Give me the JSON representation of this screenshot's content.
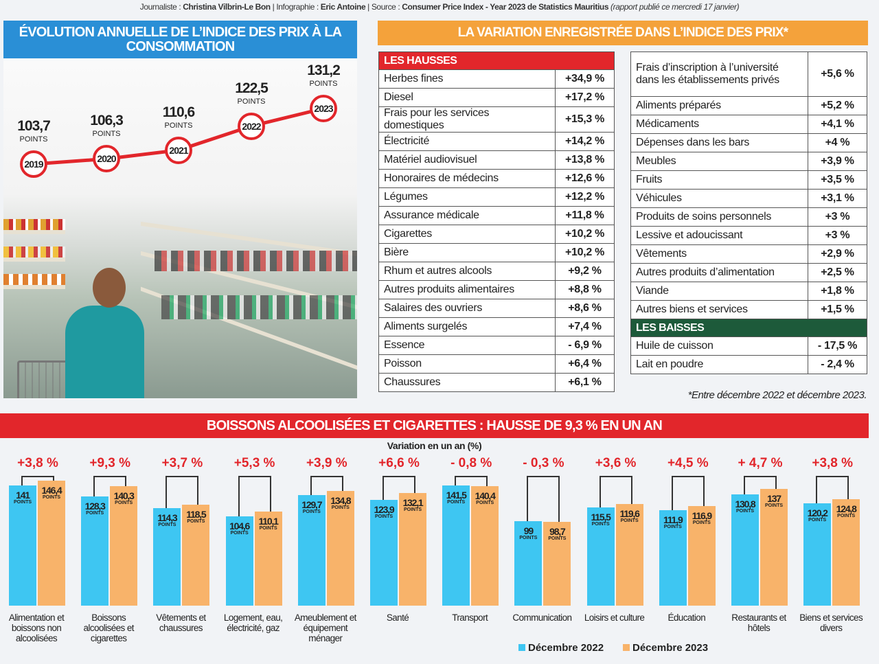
{
  "credits": {
    "l1": "Journaliste : ",
    "journalist": "Christina Vilbrin-Le Bon",
    "l2": " | Infographie : ",
    "designer": "Eric Antoine",
    "l3": " | Source : ",
    "source": "Consumer Price Index - Year 2023 de Statistics Mauritius",
    "note": " (rapport publié ce mercredi 17 janvier)"
  },
  "left_title": "ÉVOLUTION ANNUELLE DE L’INDICE DES PRIX À LA CONSOMMATION",
  "points_label": "POINTS",
  "colors": {
    "red": "#e2262b",
    "blue": "#3ec6f2",
    "orange": "#f8b36a",
    "green": "#1d5a3a",
    "title_blue": "#2a8fd6",
    "title_orange": "#f4a23b"
  },
  "chart_data": [
    {
      "type": "line",
      "title": "ÉVOLUTION ANNUELLE DE L’INDICE DES PRIX À LA CONSOMMATION",
      "x": [
        "2019",
        "2020",
        "2021",
        "2022",
        "2023"
      ],
      "y": [
        103.7,
        106.3,
        110.6,
        122.5,
        131.2
      ],
      "labels": [
        "103,7",
        "106,3",
        "110,6",
        "122,5",
        "131,2"
      ],
      "unit": "POINTS",
      "color": "#e2262b"
    },
    {
      "type": "bar",
      "title": "BOISSONS ALCOOLISÉES ET CIGARETTES : HAUSSE DE 9,3 % EN UN AN",
      "subtitle": "Variation en un an (%)",
      "categories": [
        "Alimentation et boissons non alcoolisées",
        "Boissons alcoolisées et cigarettes",
        "Vêtements et chaussures",
        "Logement, eau, électricité, gaz",
        "Ameublement et équipement ménager",
        "Santé",
        "Transport",
        "Communication",
        "Loisirs et culture",
        "Éducation",
        "Restaurants et hôtels",
        "Biens et services divers"
      ],
      "series": [
        {
          "name": "Décembre 2022",
          "color": "#3ec6f2",
          "values": [
            141,
            128.3,
            114.3,
            104.6,
            129.7,
            123.9,
            141.5,
            99,
            115.5,
            111.9,
            130.8,
            120.2
          ],
          "labels": [
            "141",
            "128,3",
            "114,3",
            "104,6",
            "129,7",
            "123,9",
            "141,5",
            "99",
            "115,5",
            "111,9",
            "130,8",
            "120,2"
          ]
        },
        {
          "name": "Décembre 2023",
          "color": "#f8b36a",
          "values": [
            146.4,
            140.3,
            118.5,
            110.1,
            134.8,
            132.1,
            140.4,
            98.7,
            119.6,
            116.9,
            137,
            124.8
          ],
          "labels": [
            "146,4",
            "140,3",
            "118,5",
            "110,1",
            "134,8",
            "132,1",
            "140,4",
            "98,7",
            "119,6",
            "116,9",
            "137",
            "124,8"
          ]
        }
      ],
      "variation": [
        "+3,8 %",
        "+9,3 %",
        "+3,7 %",
        "+5,3 %",
        "+3,9 %",
        "+6,6 %",
        "- 0,8 %",
        "- 0,3 %",
        "+3,6 %",
        "+4,5 %",
        "+ 4,7 %",
        "+3,8 %"
      ],
      "unit": "POINTS",
      "legend": "bottom"
    }
  ],
  "right_title": "LA VARIATION ENREGISTRÉE DANS L’INDICE DES PRIX*",
  "hausses_label": "LES HAUSSES",
  "hausses": [
    {
      "item": "Herbes fines",
      "value": "+34,9 %"
    },
    {
      "item": "Diesel",
      "value": "+17,2 %"
    },
    {
      "item": "Frais pour les services domestiques",
      "value": "+15,3 %"
    },
    {
      "item": "Électricité",
      "value": "+14,2 %"
    },
    {
      "item": "Matériel audiovisuel",
      "value": "+13,8 %"
    },
    {
      "item": "Honoraires de médecins",
      "value": "+12,6 %"
    },
    {
      "item": "Légumes",
      "value": "+12,2 %"
    },
    {
      "item": "Assurance médicale",
      "value": "+11,8 %"
    },
    {
      "item": "Cigarettes",
      "value": "+10,2 %"
    },
    {
      "item": "Bière",
      "value": "+10,2 %"
    },
    {
      "item": "Rhum et autres alcools",
      "value": "+9,2 %"
    },
    {
      "item": "Autres produits alimentaires",
      "value": "+8,8 %"
    },
    {
      "item": "Salaires des ouvriers",
      "value": "+8,6 %"
    },
    {
      "item": "Aliments surgelés",
      "value": "+7,4 %"
    },
    {
      "item": "Essence",
      "value": "- 6,9 %"
    },
    {
      "item": "Poisson",
      "value": "+6,4 %"
    },
    {
      "item": "Chaussures",
      "value": "+6,1 %"
    }
  ],
  "hausses_2": [
    {
      "item": "Frais d’inscription à l’université dans les établissements privés",
      "value": "+5,6 %"
    },
    {
      "item": "Aliments préparés",
      "value": "+5,2 %"
    },
    {
      "item": "Médicaments",
      "value": "+4,1 %"
    },
    {
      "item": "Dépenses dans les bars",
      "value": "+4 %"
    },
    {
      "item": "Meubles",
      "value": "+3,9 %"
    },
    {
      "item": "Fruits",
      "value": "+3,5 %"
    },
    {
      "item": "Véhicules",
      "value": "+3,1 %"
    },
    {
      "item": "Produits de soins personnels",
      "value": "+3 %"
    },
    {
      "item": "Lessive et adoucissant",
      "value": "+3 %"
    },
    {
      "item": "Vêtements",
      "value": "+2,9 %"
    },
    {
      "item": "Autres produits d’alimentation",
      "value": "+2,5 %"
    },
    {
      "item": "Viande",
      "value": "+1,8 %"
    },
    {
      "item": "Autres biens et services",
      "value": "+1,5 %"
    }
  ],
  "baisses_label": "LES BAISSES",
  "baisses": [
    {
      "item": "Huile de cuisson",
      "value": "- 17,5 %"
    },
    {
      "item": "Lait en poudre",
      "value": "- 2,4 %"
    }
  ],
  "footnote": "*Entre décembre 2022 et décembre 2023."
}
